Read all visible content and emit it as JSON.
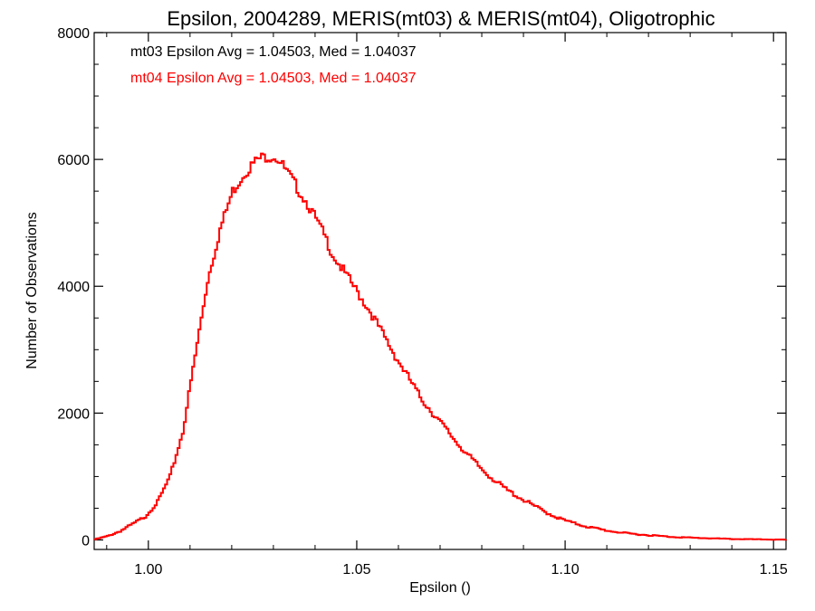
{
  "chart_data": {
    "type": "line",
    "title": "Epsilon, 2004289, MERIS(mt03) & MERIS(mt04), Oligotrophic",
    "xlabel": "Epsilon ()",
    "ylabel": "Number of Observations",
    "xlim": [
      0.987,
      1.153
    ],
    "ylim": [
      -150,
      8000
    ],
    "xticks": [
      1.0,
      1.05,
      1.1,
      1.15
    ],
    "xtick_labels": [
      "1.00",
      "1.05",
      "1.10",
      "1.15"
    ],
    "yticks": [
      0,
      2000,
      4000,
      6000,
      8000
    ],
    "ytick_labels": [
      "0",
      "2000",
      "4000",
      "6000",
      "8000"
    ],
    "grid": false,
    "annotations": [
      {
        "text": "mt03 Epsilon Avg = 1.04503, Med = 1.04037",
        "color": "#000000"
      },
      {
        "text": "mt04 Epsilon Avg = 1.04503, Med = 1.04037",
        "color": "#ff0000"
      }
    ],
    "series": [
      {
        "color": "#ff0000",
        "style": "step",
        "x": [
          0.987,
          0.99,
          0.993,
          0.996,
          0.999,
          1.002,
          1.005,
          1.008,
          1.011,
          1.014,
          1.017,
          1.02,
          1.023,
          1.026,
          1.028,
          1.03,
          1.031,
          1.032,
          1.034,
          1.036,
          1.038,
          1.04,
          1.042,
          1.044,
          1.046,
          1.048,
          1.05,
          1.053,
          1.056,
          1.059,
          1.062,
          1.065,
          1.068,
          1.071,
          1.074,
          1.077,
          1.08,
          1.083,
          1.086,
          1.089,
          1.092,
          1.095,
          1.098,
          1.101,
          1.105,
          1.11,
          1.115,
          1.12,
          1.125,
          1.13,
          1.135,
          1.14,
          1.145,
          1.15,
          1.153
        ],
        "y": [
          10,
          60,
          140,
          250,
          370,
          600,
          1000,
          1700,
          2900,
          4100,
          4900,
          5500,
          5800,
          6000,
          6050,
          6050,
          6000,
          5900,
          5700,
          5500,
          5300,
          5050,
          4800,
          4500,
          4300,
          4100,
          3900,
          3600,
          3250,
          2900,
          2580,
          2250,
          2000,
          1760,
          1520,
          1300,
          1100,
          930,
          780,
          660,
          550,
          440,
          350,
          280,
          210,
          145,
          100,
          75,
          50,
          35,
          25,
          15,
          10,
          5,
          5
        ]
      }
    ]
  }
}
